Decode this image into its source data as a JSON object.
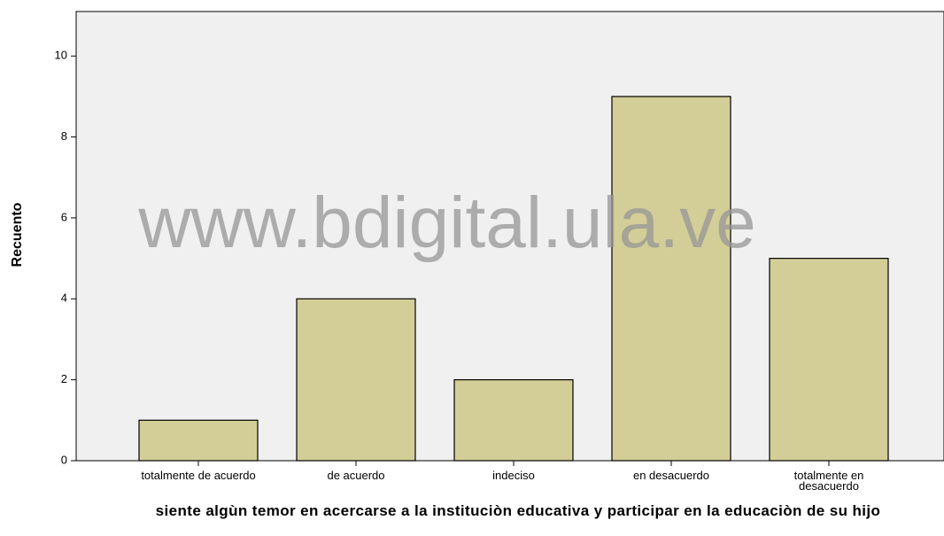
{
  "chart_data": {
    "type": "bar",
    "annotation": "www.bdigital.ula.ve",
    "x_label": "siente algùn temor en acercarse a la instituciòn educativa y participar en la educaciòn de su hijo",
    "y_label": "Recuento",
    "categories": [
      "totalmente de acuerdo",
      "de acuerdo",
      "indeciso",
      "en desacuerdo",
      "totalmente en desacuerdo"
    ],
    "values": [
      1,
      4,
      2,
      9,
      5
    ],
    "color": "#d3ce97",
    "ylim": [
      0,
      11.1
    ],
    "yticks": [
      0,
      2,
      4,
      6,
      8,
      10
    ]
  }
}
